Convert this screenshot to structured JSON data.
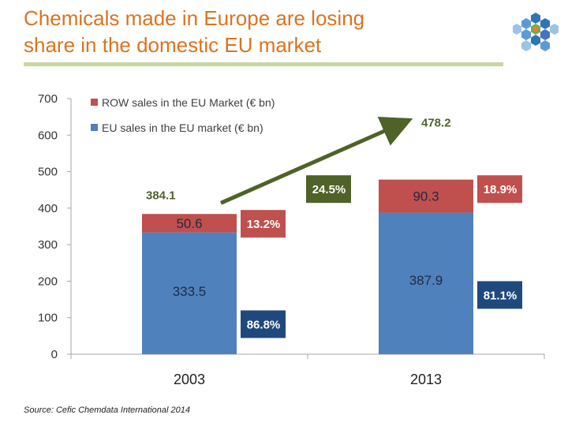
{
  "slide": {
    "title_line1": "Chemicals made in Europe are losing",
    "title_line2": "share in the domestic EU market",
    "source": "Source: Cefic Chemdata International 2014",
    "logo_icon": "hexagon-cluster-logo-icon"
  },
  "colors": {
    "title": "#d9741f",
    "eu": "#4f81bd",
    "row": "#c0504d",
    "eu_pct_box": "#1f497d",
    "row_pct_box": "#c0504d",
    "growth_box": "#4f6228",
    "growth_label": "#4f6228",
    "arrow": "#4f6228"
  },
  "chart_data": {
    "type": "bar",
    "stacked": true,
    "categories": [
      "2003",
      "2013"
    ],
    "series": [
      {
        "name": "EU sales in the EU market  (€ bn)",
        "values": [
          333.5,
          387.9
        ],
        "labels": [
          "333.5",
          "387.9"
        ],
        "share_labels": [
          "86.8%",
          "81.1%"
        ]
      },
      {
        "name": "ROW sales in the EU Market  (€ bn)",
        "values": [
          50.6,
          90.3
        ],
        "labels": [
          "50.6",
          "90.3"
        ],
        "share_labels": [
          "13.2%",
          "18.9%"
        ]
      }
    ],
    "totals": [
      384.1,
      478.2
    ],
    "total_labels": [
      "384.1",
      "478.2"
    ],
    "growth_label": "24.5%",
    "yticks": [
      "0",
      "100",
      "200",
      "300",
      "400",
      "500",
      "600",
      "700"
    ],
    "ylim": [
      0,
      700
    ],
    "legend_position": "top-left",
    "title": "",
    "xlabel": "",
    "ylabel": ""
  }
}
